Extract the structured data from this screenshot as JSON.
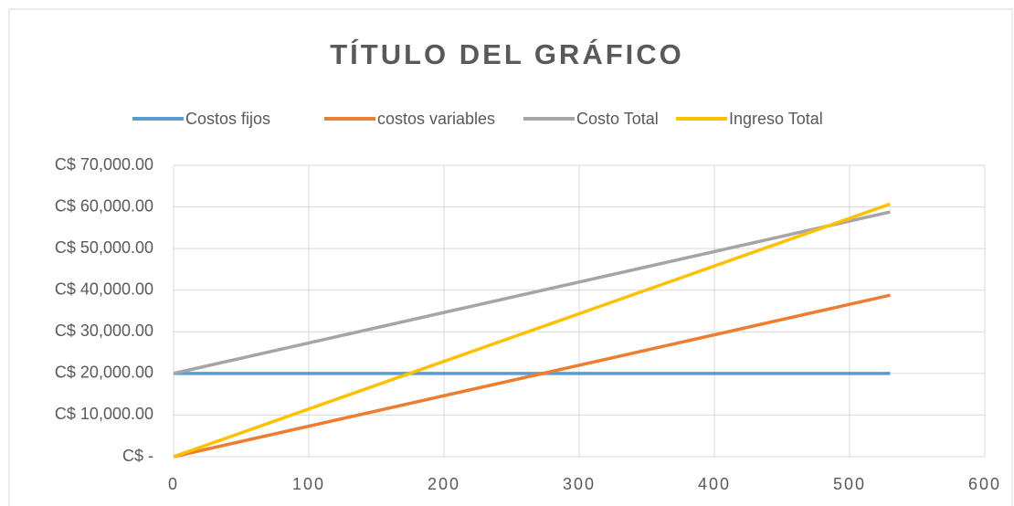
{
  "chart_data": {
    "type": "line",
    "title": "TÍTULO DEL GRÁFICO",
    "x": [
      0,
      530
    ],
    "series": [
      {
        "name": "Costos fijos",
        "color": "#5b9bd5",
        "values": [
          20000,
          20000
        ]
      },
      {
        "name": "costos variables",
        "color": "#ed7d31",
        "values": [
          0,
          38800
        ]
      },
      {
        "name": "Costo Total",
        "color": "#a5a5a5",
        "values": [
          20000,
          58800
        ]
      },
      {
        "name": "Ingreso Total",
        "color": "#ffc000",
        "values": [
          0,
          60700
        ]
      }
    ],
    "xlim": [
      0,
      600
    ],
    "xticks": [
      0,
      100,
      200,
      300,
      400,
      500,
      600
    ],
    "ylim": [
      0,
      70000
    ],
    "yticks": [
      {
        "value": 0,
        "label": "C$ -"
      },
      {
        "value": 10000,
        "label": "C$ 10,000.00"
      },
      {
        "value": 20000,
        "label": "C$ 20,000.00"
      },
      {
        "value": 30000,
        "label": "C$ 30,000.00"
      },
      {
        "value": 40000,
        "label": "C$ 40,000.00"
      },
      {
        "value": 50000,
        "label": "C$ 50,000.00"
      },
      {
        "value": 60000,
        "label": "C$ 60,000.00"
      },
      {
        "value": 70000,
        "label": "C$ 70,000.00"
      }
    ],
    "grid": true,
    "legend": "top"
  }
}
